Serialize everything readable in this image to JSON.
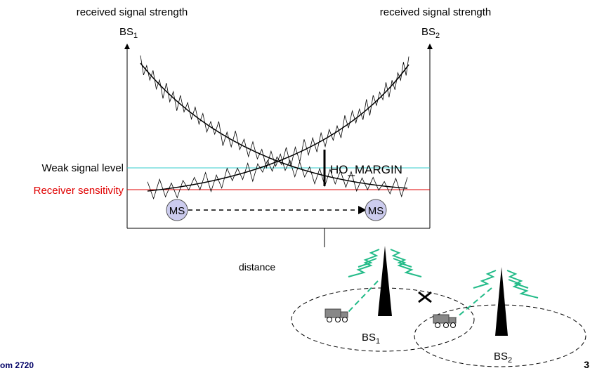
{
  "axes": {
    "left_label": {
      "text": "received signal strength",
      "station": "BS",
      "sub": "1"
    },
    "right_label": {
      "text": "received signal strength",
      "station": "BS",
      "sub": "2"
    },
    "x_label": "distance"
  },
  "levels": {
    "weak": "Weak signal  level",
    "sensitivity": "Receiver sensitivity",
    "margin": "HO_MARGIN"
  },
  "mobiles": [
    "MS",
    "MS"
  ],
  "cells": [
    {
      "station": "BS",
      "sub": "1"
    },
    {
      "station": "BS",
      "sub": "2"
    }
  ],
  "footer": {
    "left": "om 2720",
    "page": "3"
  }
}
